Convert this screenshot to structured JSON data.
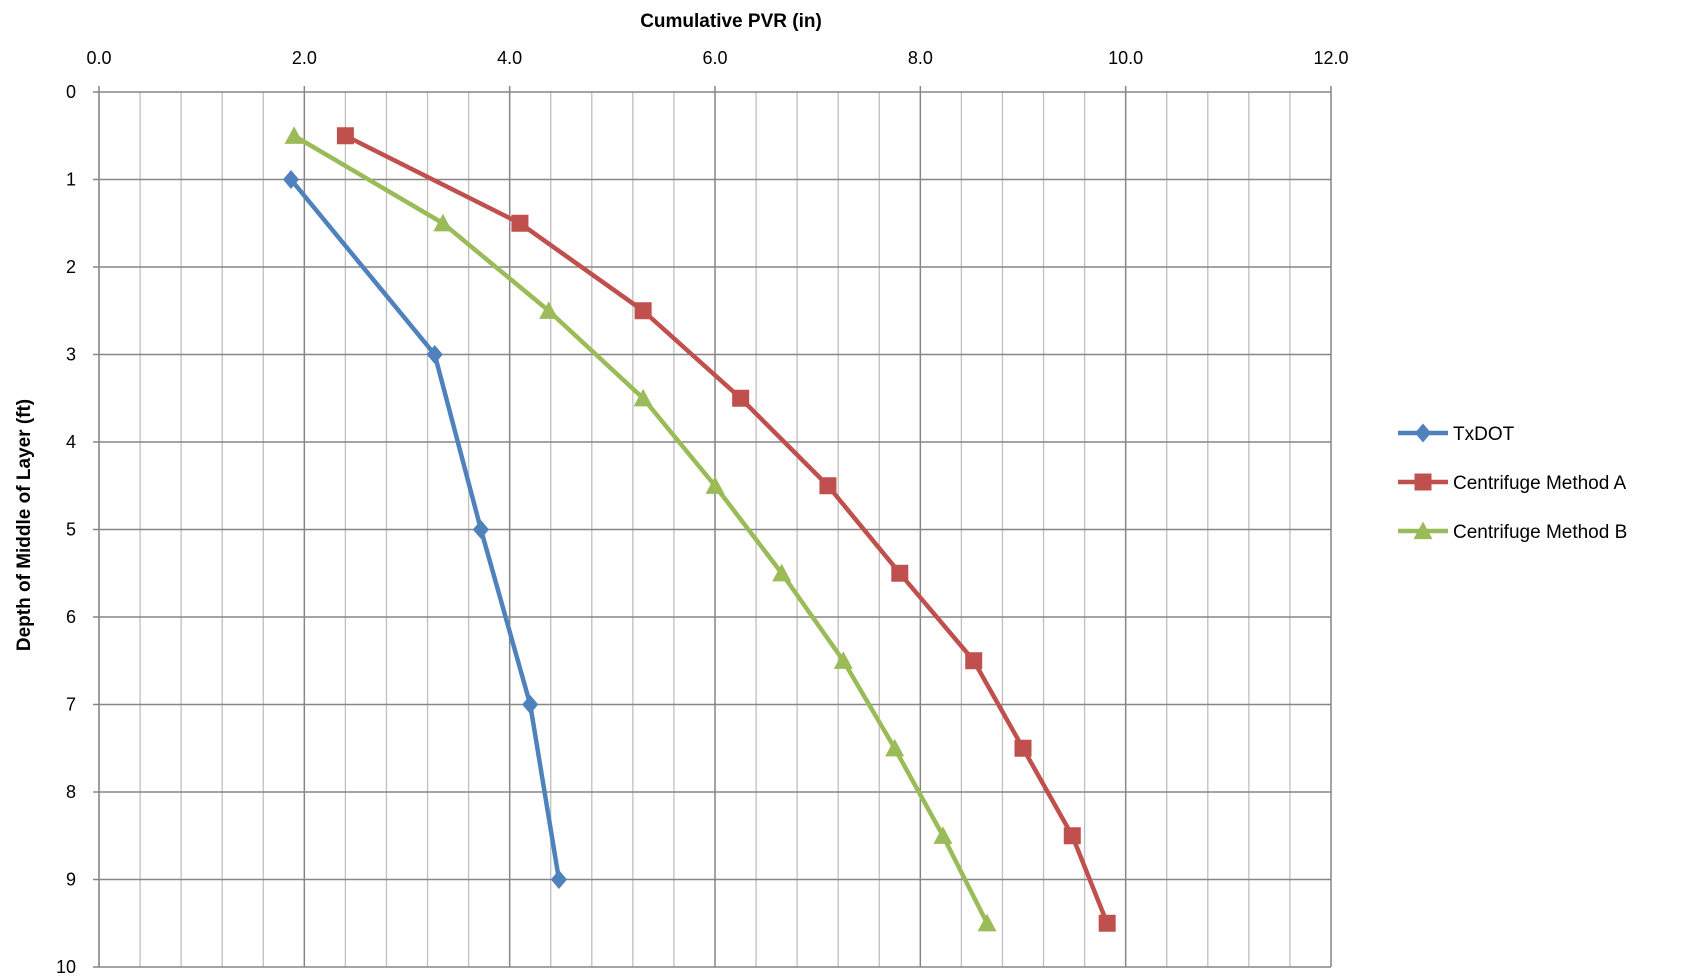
{
  "chart_data": {
    "type": "line",
    "title": "",
    "xlabel": "Cumulative PVR (in)",
    "ylabel": "Depth of Middle of Layer (ft)",
    "xlim": [
      0,
      12
    ],
    "ylim": [
      0,
      10
    ],
    "y_inverted": true,
    "x_axis_position": "top",
    "x_ticks": [
      "0.0",
      "2.0",
      "4.0",
      "6.0",
      "8.0",
      "10.0",
      "12.0"
    ],
    "y_ticks": [
      "0",
      "1",
      "2",
      "3",
      "4",
      "5",
      "6",
      "7",
      "8",
      "9",
      "10"
    ],
    "grid": true,
    "x_minor_step": 0.4,
    "legend_position": "right",
    "series": [
      {
        "name": "TxDOT",
        "color": "#4F81BD",
        "marker": "diamond",
        "x": [
          1.87,
          3.27,
          3.72,
          4.2,
          4.48
        ],
        "y": [
          1,
          3,
          5,
          7,
          9
        ]
      },
      {
        "name": "Centrifuge Method A",
        "color": "#C0504D",
        "marker": "square",
        "x": [
          2.4,
          4.1,
          5.3,
          6.25,
          7.1,
          7.8,
          8.52,
          9.0,
          9.48,
          9.82
        ],
        "y": [
          0.5,
          1.5,
          2.5,
          3.5,
          4.5,
          5.5,
          6.5,
          7.5,
          8.5,
          9.5
        ]
      },
      {
        "name": "Centrifuge Method B",
        "color": "#9BBB59",
        "marker": "triangle",
        "x": [
          1.9,
          3.35,
          4.38,
          5.3,
          6.0,
          6.65,
          7.25,
          7.75,
          8.22,
          8.65
        ],
        "y": [
          0.5,
          1.5,
          2.5,
          3.5,
          4.5,
          5.5,
          6.5,
          7.5,
          8.5,
          9.5
        ]
      }
    ]
  }
}
